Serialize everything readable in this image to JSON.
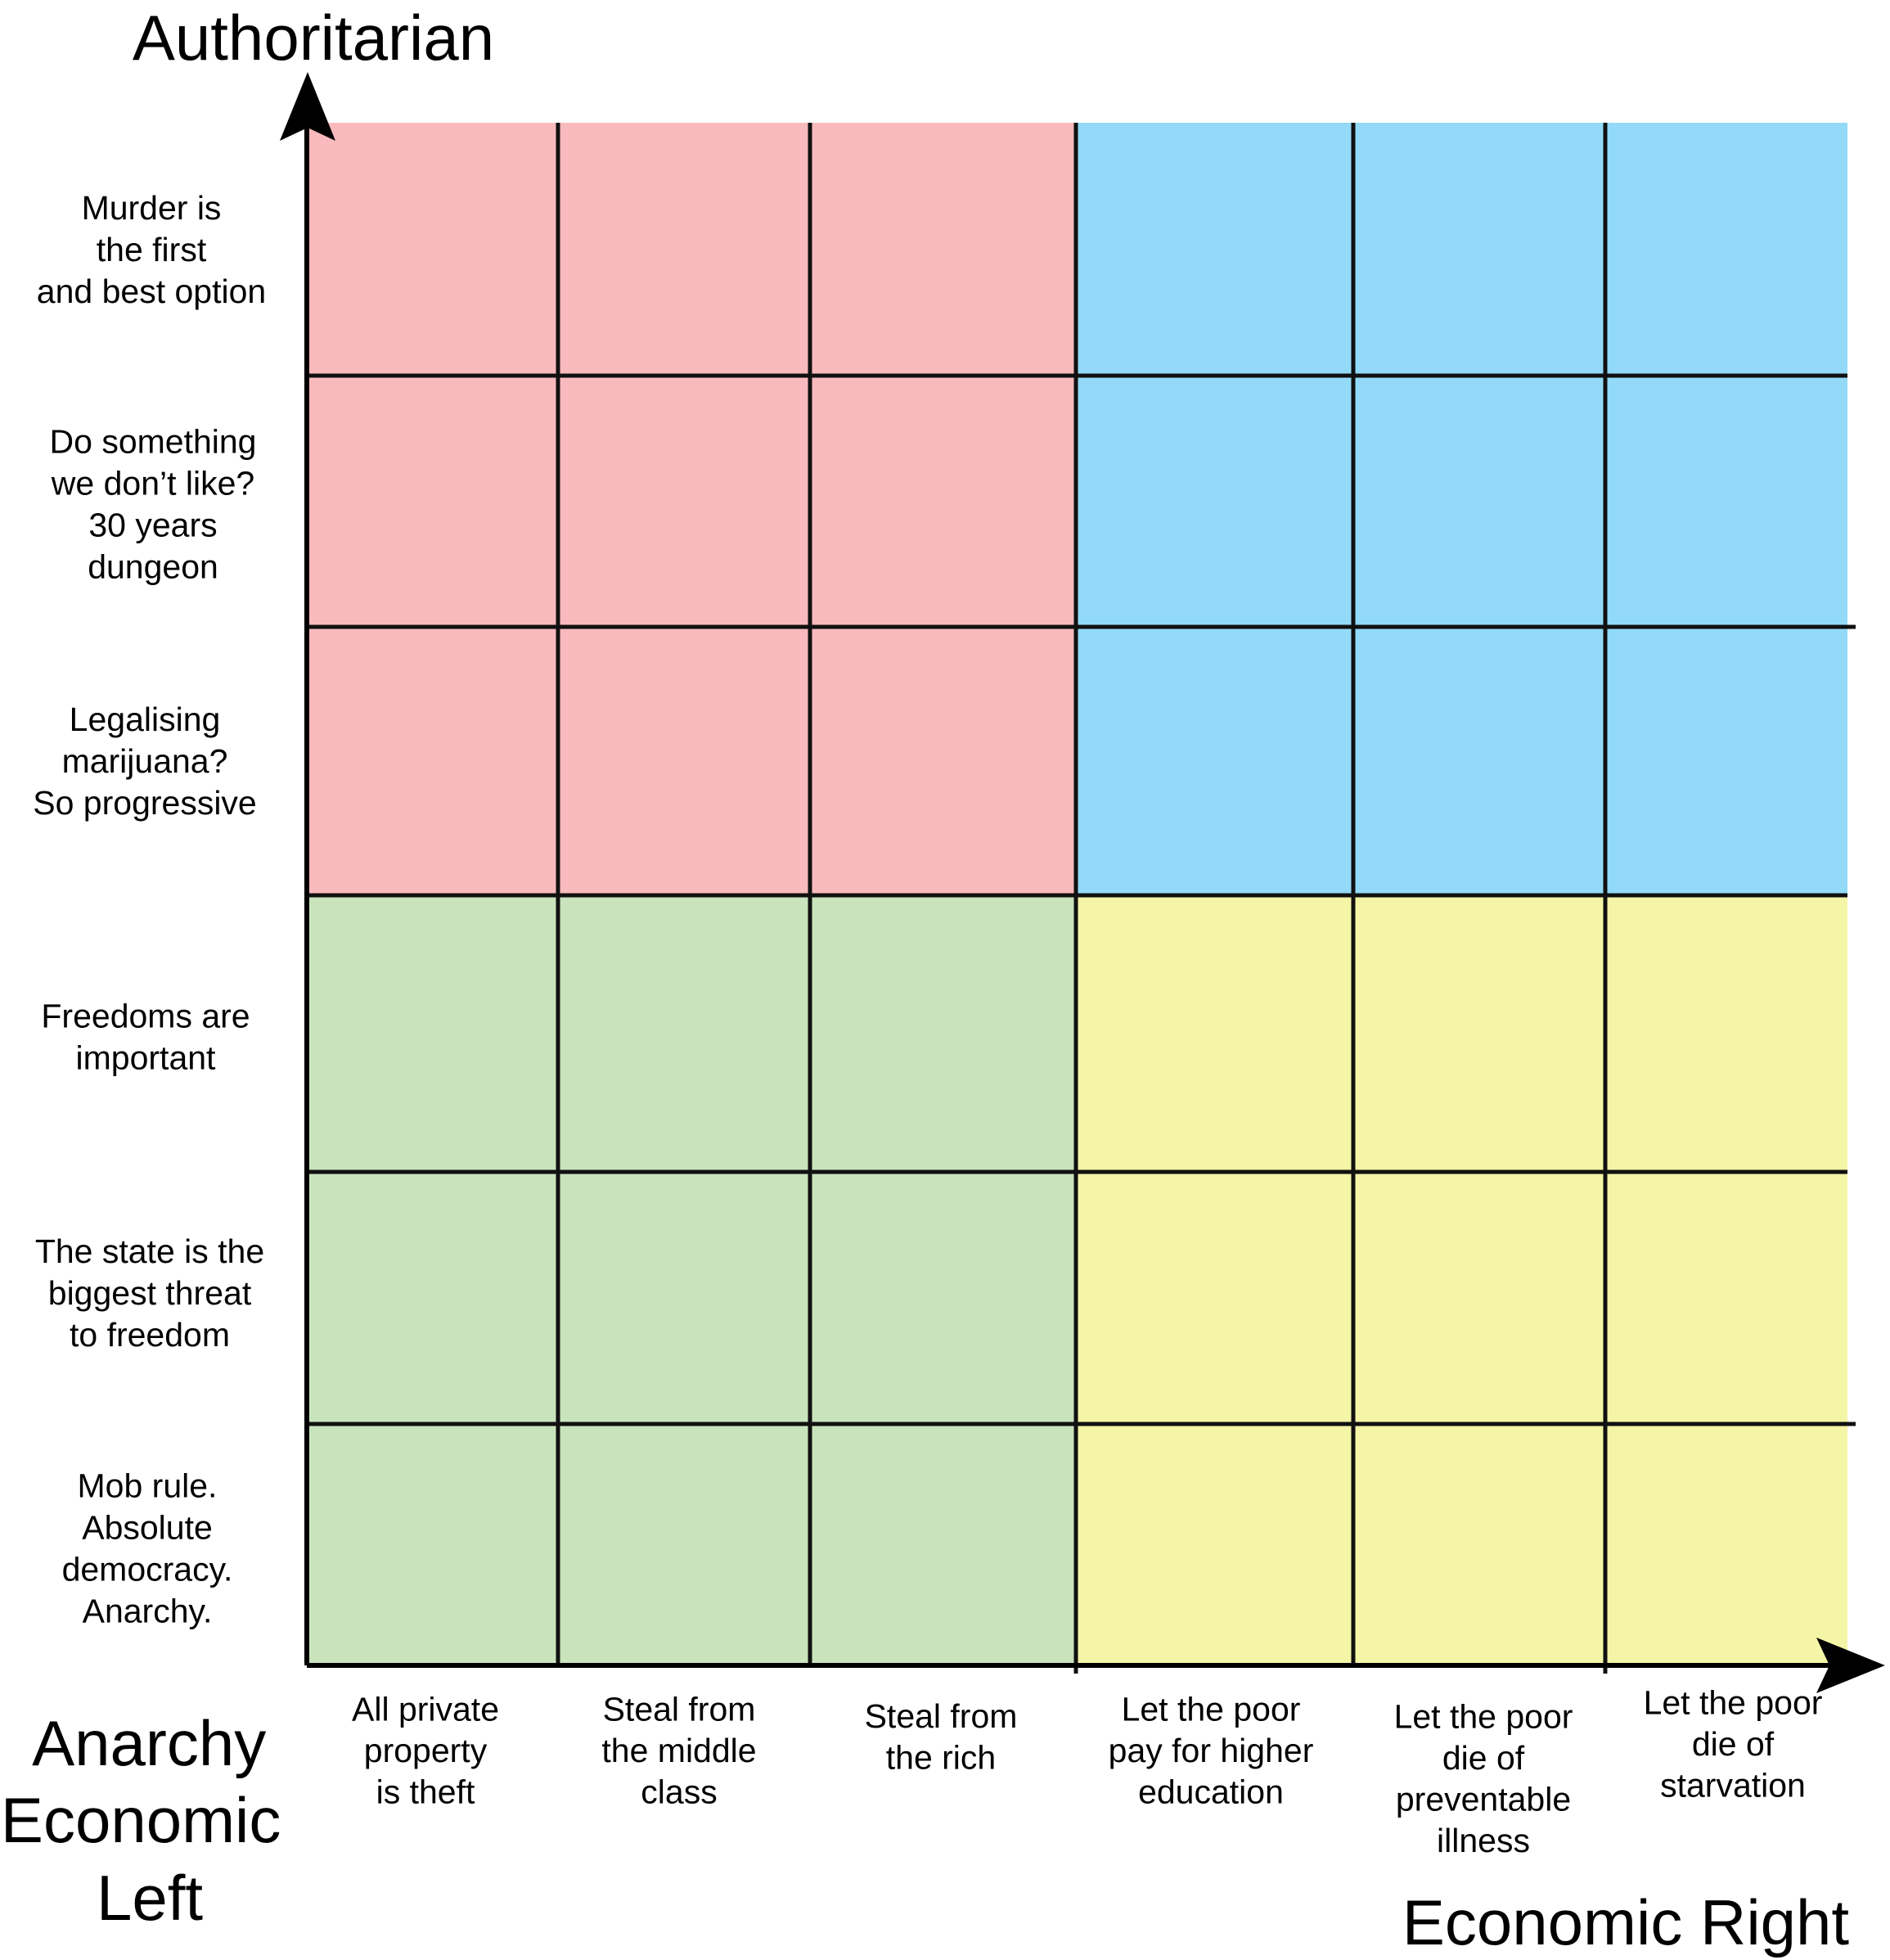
{
  "axis_titles": {
    "top": "Authoritarian",
    "bottom_left": [
      "Anarchy",
      "Economic",
      "Left"
    ],
    "bottom_right": "Economic Right"
  },
  "y_labels": [
    [
      "Murder is",
      "the first",
      "and best option"
    ],
    [
      "Do something",
      "we don’t like?",
      "30 years",
      "dungeon"
    ],
    [
      "Legalising",
      "marijuana?",
      "So progressive"
    ],
    [
      "Freedoms are",
      "important"
    ],
    [
      "The state is the",
      "biggest threat",
      "to freedom"
    ],
    [
      "Mob rule.",
      "Absolute",
      "democracy.",
      "Anarchy."
    ]
  ],
  "x_labels": [
    [
      "All private",
      "property",
      "is theft"
    ],
    [
      "Steal from",
      "the middle",
      "class"
    ],
    [
      "Steal from",
      "the rich"
    ],
    [
      "Let the poor",
      "pay for higher",
      "education"
    ],
    [
      "Let the poor",
      "die of",
      "preventable",
      "illness"
    ],
    [
      "Let the poor",
      "die of",
      "starvation"
    ]
  ],
  "quadrant_colors": {
    "auth_left": "#f9babd",
    "auth_right": "#92daf8",
    "lib_left": "#c9e4bd",
    "lib_right": "#f4f5a6"
  },
  "grid": {
    "columns": 6,
    "rows": 6
  }
}
